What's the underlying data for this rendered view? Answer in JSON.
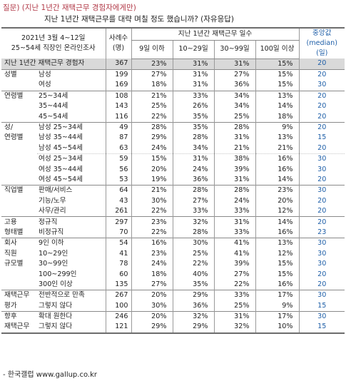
{
  "question": {
    "line1": "질문) (지난 1년간 재택근무 경험자에게만)",
    "line2": "지난 1년간 재택근무를 대략 며칠 정도 했습니까? (자유응답)"
  },
  "header": {
    "survey_line1": "2021년 3월 4~12일",
    "survey_line2": "25~54세 직장인 온라인조사",
    "cases_line1": "사례수",
    "cases_line2": "(명)",
    "days_group": "지난 1년간 재택근무 일수",
    "col1": "9일 이하",
    "col2": "10~29일",
    "col3": "30~99일",
    "col4": "100일 이상",
    "median_line1": "중앙값",
    "median_line2": "(median)",
    "median_line3": "(일)"
  },
  "rows": [
    {
      "g": "지난 1년간 재택근무 경험자",
      "s": "",
      "n": "367",
      "a": "23%",
      "b": "31%",
      "c": "31%",
      "d": "15%",
      "m": "20"
    },
    {
      "g": "성별",
      "s": "남성",
      "n": "199",
      "a": "27%",
      "b": "31%",
      "c": "27%",
      "d": "15%",
      "m": "20"
    },
    {
      "g": "",
      "s": "여성",
      "n": "169",
      "a": "18%",
      "b": "31%",
      "c": "36%",
      "d": "15%",
      "m": "30"
    },
    {
      "g": "연령별",
      "s": "25~34세",
      "n": "108",
      "a": "21%",
      "b": "33%",
      "c": "34%",
      "d": "13%",
      "m": "20"
    },
    {
      "g": "",
      "s": "35~44세",
      "n": "143",
      "a": "25%",
      "b": "26%",
      "c": "34%",
      "d": "14%",
      "m": "20"
    },
    {
      "g": "",
      "s": "45~54세",
      "n": "116",
      "a": "22%",
      "b": "35%",
      "c": "25%",
      "d": "18%",
      "m": "20"
    },
    {
      "g": "성/",
      "s": "남성 25~34세",
      "n": "49",
      "a": "28%",
      "b": "35%",
      "c": "28%",
      "d": "9%",
      "m": "20"
    },
    {
      "g": "연령별",
      "s": "남성 35~44세",
      "n": "87",
      "a": "29%",
      "b": "28%",
      "c": "31%",
      "d": "13%",
      "m": "15"
    },
    {
      "g": "",
      "s": "남성 45~54세",
      "n": "63",
      "a": "24%",
      "b": "34%",
      "c": "21%",
      "d": "21%",
      "m": "20"
    },
    {
      "g": "",
      "s": "여성 25~34세",
      "n": "59",
      "a": "15%",
      "b": "31%",
      "c": "38%",
      "d": "16%",
      "m": "30"
    },
    {
      "g": "",
      "s": "여성 35~44세",
      "n": "56",
      "a": "20%",
      "b": "24%",
      "c": "39%",
      "d": "16%",
      "m": "30"
    },
    {
      "g": "",
      "s": "여성 45~54세",
      "n": "53",
      "a": "19%",
      "b": "36%",
      "c": "31%",
      "d": "14%",
      "m": "20"
    },
    {
      "g": "직업별",
      "s": "판매/서비스",
      "n": "64",
      "a": "21%",
      "b": "28%",
      "c": "28%",
      "d": "23%",
      "m": "30"
    },
    {
      "g": "",
      "s": "기능/노무",
      "n": "43",
      "a": "30%",
      "b": "27%",
      "c": "24%",
      "d": "20%",
      "m": "20"
    },
    {
      "g": "",
      "s": "사무/관리",
      "n": "261",
      "a": "22%",
      "b": "33%",
      "c": "33%",
      "d": "12%",
      "m": "20"
    },
    {
      "g": "고용",
      "s": "정규직",
      "n": "297",
      "a": "23%",
      "b": "32%",
      "c": "31%",
      "d": "14%",
      "m": "20"
    },
    {
      "g": "형태별",
      "s": "비정규직",
      "n": "70",
      "a": "22%",
      "b": "28%",
      "c": "33%",
      "d": "16%",
      "m": "23"
    },
    {
      "g": "회사",
      "s": "9인 이하",
      "n": "54",
      "a": "16%",
      "b": "30%",
      "c": "41%",
      "d": "13%",
      "m": "30"
    },
    {
      "g": "직원",
      "s": "10~29인",
      "n": "41",
      "a": "23%",
      "b": "25%",
      "c": "41%",
      "d": "12%",
      "m": "30"
    },
    {
      "g": "규모별",
      "s": "30~99인",
      "n": "78",
      "a": "24%",
      "b": "22%",
      "c": "39%",
      "d": "15%",
      "m": "30"
    },
    {
      "g": "",
      "s": "100~299인",
      "n": "60",
      "a": "18%",
      "b": "40%",
      "c": "27%",
      "d": "15%",
      "m": "20"
    },
    {
      "g": "",
      "s": "300인 이상",
      "n": "135",
      "a": "27%",
      "b": "35%",
      "c": "22%",
      "d": "16%",
      "m": "20"
    },
    {
      "g": "재택근무",
      "s": "전반적으로 만족",
      "n": "267",
      "a": "20%",
      "b": "29%",
      "c": "33%",
      "d": "17%",
      "m": "30"
    },
    {
      "g": "평가",
      "s": "그렇지 않다",
      "n": "100",
      "a": "30%",
      "b": "36%",
      "c": "25%",
      "d": "9%",
      "m": "15"
    },
    {
      "g": "향후",
      "s": "확대 원한다",
      "n": "246",
      "a": "20%",
      "b": "32%",
      "c": "31%",
      "d": "17%",
      "m": "30"
    },
    {
      "g": "재택근무",
      "s": "그렇지 않다",
      "n": "121",
      "a": "29%",
      "b": "29%",
      "c": "32%",
      "d": "10%",
      "m": "15"
    }
  ],
  "footer": "- 한국갤럽 www.gallup.co.kr"
}
